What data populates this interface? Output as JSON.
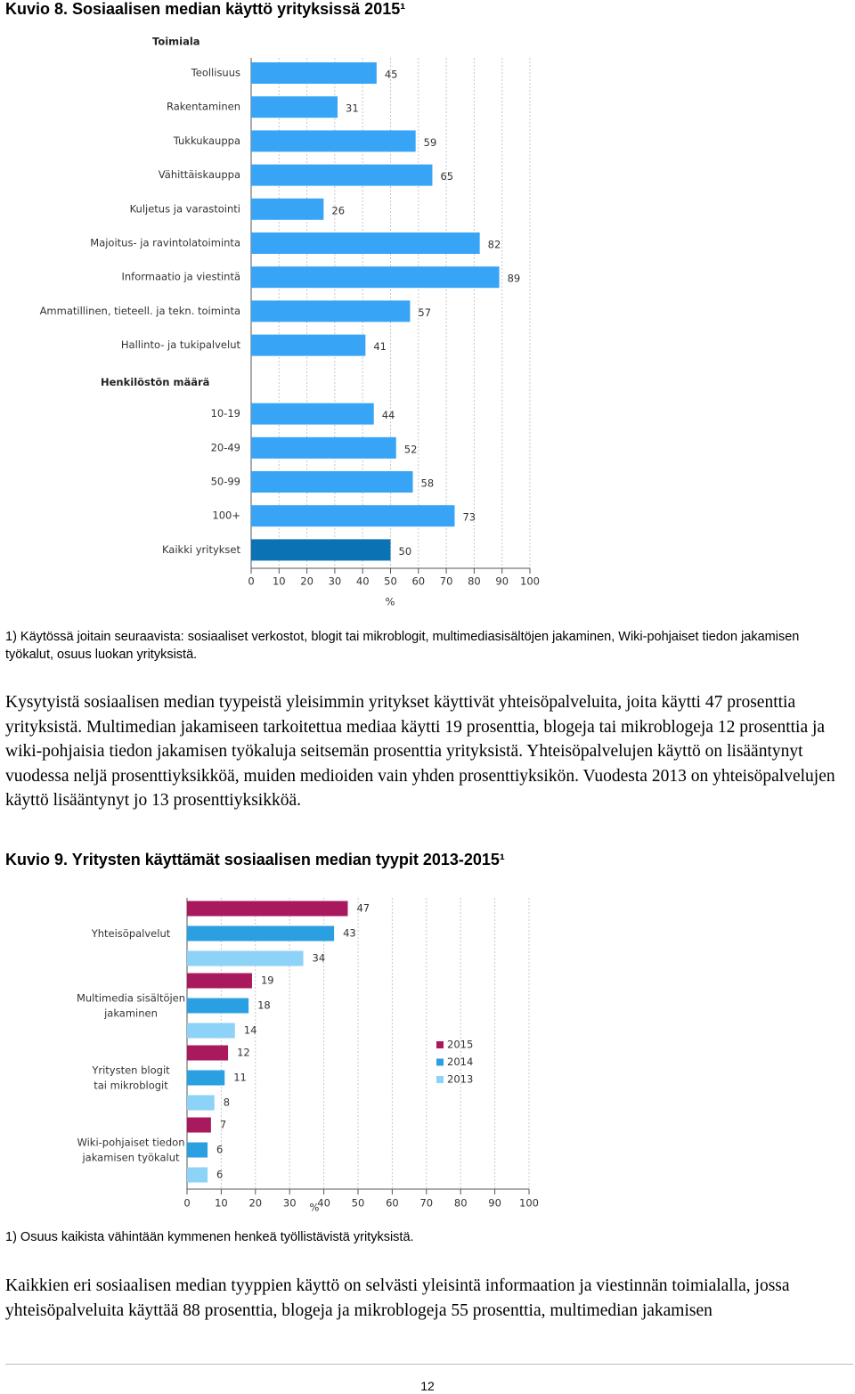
{
  "document": {
    "figure1_title": "Kuvio 8. Sosiaalisen median käyttö yrityksissä 2015¹",
    "figure1_footnote": "1) Käytössä joitain seuraavista: sosiaaliset verkostot, blogit tai mikroblogit, multimediasisältöjen jakaminen, Wiki-pohjaiset tiedon jakamisen työkalut, osuus luokan yrityksistä.",
    "paragraph1": "Kysytyistä sosiaalisen median tyypeistä yleisimmin yritykset käyttivät yhteisöpalveluita, joita käytti 47 prosenttia yrityksistä. Multimedian jakamiseen tarkoitettua mediaa käytti 19 prosenttia, blogeja tai mikroblogeja 12 prosenttia ja wiki-pohjaisia tiedon jakamisen työkaluja seitsemän prosenttia yrityksistä. Yhteisöpalvelujen käyttö on lisääntynyt vuodessa neljä prosenttiyksikköä, muiden medioiden vain yhden prosenttiyksikön. Vuodesta 2013 on yhteisöpalvelujen käyttö lisääntynyt jo 13 prosenttiyksikköä.",
    "figure2_title": "Kuvio 9. Yritysten käyttämät sosiaalisen median tyypit 2013-2015¹",
    "figure2_footnote": "1) Osuus kaikista vähintään kymmenen henkeä työllistävistä yrityksistä.",
    "paragraph2": "Kaikkien eri sosiaalisen median tyyppien käyttö on selvästi yleisintä informaation ja viestinnän toimialalla, jossa yhteisöpalveluita käyttää 88 prosenttia, blogeja ja mikroblogeja 55 prosenttia, multimedian jakamisen",
    "page_number": "12"
  },
  "chart_data": [
    {
      "type": "grouped-hbar",
      "groups": [
        {
          "name": "Toimiala",
          "categories": [
            "Teollisuus",
            "Rakentaminen",
            "Tukkukauppa",
            "Vähittäiskauppa",
            "Kuljetus ja varastointi",
            "Majoitus- ja ravintolatoiminta",
            "Informaatio ja viestintä",
            "Ammatillinen, tieteell. ja tekn. toiminta",
            "Hallinto- ja tukipalvelut"
          ],
          "values": [
            45,
            31,
            59,
            65,
            26,
            82,
            89,
            57,
            41
          ],
          "colors": [
            "#37a4f5",
            "#37a4f5",
            "#37a4f5",
            "#37a4f5",
            "#37a4f5",
            "#37a4f5",
            "#37a4f5",
            "#37a4f5",
            "#37a4f5"
          ]
        },
        {
          "name": "Henkilöstön määrä",
          "categories": [
            "10-19",
            "20-49",
            "50-99",
            "100+",
            "Kaikki yritykset"
          ],
          "values": [
            44,
            52,
            58,
            73,
            50
          ],
          "colors": [
            "#37a4f5",
            "#37a4f5",
            "#37a4f5",
            "#37a4f5",
            "#0b72b4"
          ]
        }
      ],
      "xlim": [
        0,
        100
      ],
      "xticks": [
        0,
        10,
        20,
        30,
        40,
        50,
        60,
        70,
        80,
        90,
        100
      ],
      "xlabel": "%",
      "grid": true
    },
    {
      "type": "bar",
      "categories": [
        [
          "Yhteisöpalvelut"
        ],
        [
          "Multimedia sisältöjen",
          "jakaminen"
        ],
        [
          "Yritysten blogit",
          "tai mikroblogit"
        ],
        [
          "Wiki-pohjaiset tiedon",
          "jakamisen työkalut"
        ]
      ],
      "series": [
        {
          "name": "2015",
          "color": "#a8195e",
          "values": [
            47,
            19,
            12,
            7
          ]
        },
        {
          "name": "2014",
          "color": "#2a9fe2",
          "values": [
            43,
            18,
            11,
            6
          ]
        },
        {
          "name": "2013",
          "color": "#8dd2f7",
          "values": [
            34,
            14,
            8,
            6
          ]
        }
      ],
      "xlim": [
        0,
        100
      ],
      "xticks": [
        0,
        10,
        20,
        30,
        40,
        50,
        60,
        70,
        80,
        90,
        100
      ],
      "xlabel": "%",
      "grid": true,
      "legend": "right"
    }
  ]
}
